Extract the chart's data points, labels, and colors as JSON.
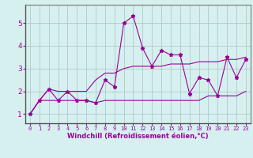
{
  "x": [
    0,
    1,
    2,
    3,
    4,
    5,
    6,
    7,
    8,
    9,
    10,
    11,
    12,
    13,
    14,
    15,
    16,
    17,
    18,
    19,
    20,
    21,
    22,
    23
  ],
  "y_main": [
    1.0,
    1.6,
    2.1,
    1.6,
    2.0,
    1.6,
    1.6,
    1.5,
    2.5,
    2.2,
    5.0,
    5.3,
    3.9,
    3.1,
    3.8,
    3.6,
    3.6,
    1.9,
    2.6,
    2.5,
    1.8,
    3.5,
    2.6,
    3.4
  ],
  "y_low": [
    1.0,
    1.6,
    1.6,
    1.6,
    1.6,
    1.6,
    1.6,
    1.5,
    1.6,
    1.6,
    1.6,
    1.6,
    1.6,
    1.6,
    1.6,
    1.6,
    1.6,
    1.6,
    1.6,
    1.8,
    1.8,
    1.8,
    1.8,
    2.0
  ],
  "y_high": [
    1.0,
    1.6,
    2.1,
    2.0,
    2.0,
    2.0,
    2.0,
    2.5,
    2.8,
    2.8,
    3.0,
    3.1,
    3.1,
    3.1,
    3.1,
    3.2,
    3.2,
    3.2,
    3.3,
    3.3,
    3.3,
    3.4,
    3.4,
    3.5
  ],
  "line_color": "#990099",
  "bg_color": "#d6f0f0",
  "grid_color": "#b0c8c8",
  "xlabel": "Windchill (Refroidissement éolien,°C)",
  "ylim": [
    0.6,
    5.8
  ],
  "xlim": [
    -0.5,
    23.5
  ],
  "yticks": [
    1,
    2,
    3,
    4,
    5
  ],
  "xticks": [
    0,
    1,
    2,
    3,
    4,
    5,
    6,
    7,
    8,
    9,
    10,
    11,
    12,
    13,
    14,
    15,
    16,
    17,
    18,
    19,
    20,
    21,
    22,
    23
  ],
  "tick_fontsize": 5.0,
  "xlabel_fontsize": 6.0
}
